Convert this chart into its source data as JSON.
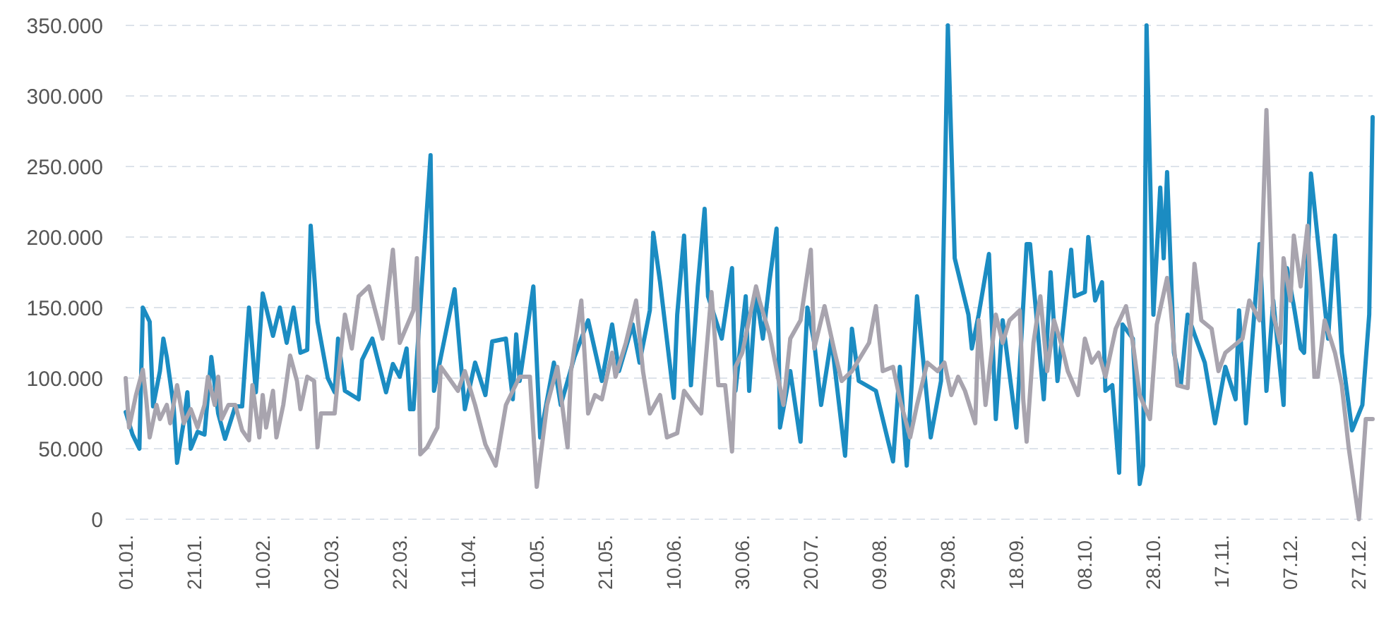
{
  "chart_data": {
    "type": "line",
    "xlim": [
      "--01-01",
      "--12-31"
    ],
    "ylim": [
      0,
      350000
    ],
    "xticks": [
      {
        "value": "--01-01",
        "label": "01.01."
      },
      {
        "value": "--01-21",
        "label": "21.01."
      },
      {
        "value": "--02-10",
        "label": "10.02."
      },
      {
        "value": "--03-02",
        "label": "02.03."
      },
      {
        "value": "--03-22",
        "label": "22.03."
      },
      {
        "value": "--04-11",
        "label": "11.04."
      },
      {
        "value": "--05-01",
        "label": "01.05."
      },
      {
        "value": "--05-21",
        "label": "21.05."
      },
      {
        "value": "--06-10",
        "label": "10.06."
      },
      {
        "value": "--06-30",
        "label": "30.06."
      },
      {
        "value": "--07-20",
        "label": "20.07."
      },
      {
        "value": "--08-09",
        "label": "09.08."
      },
      {
        "value": "--08-29",
        "label": "29.08."
      },
      {
        "value": "--09-18",
        "label": "18.09."
      },
      {
        "value": "--10-08",
        "label": "08.10."
      },
      {
        "value": "--10-28",
        "label": "28.10."
      },
      {
        "value": "--11-17",
        "label": "17.11."
      },
      {
        "value": "--12-07",
        "label": "07.12."
      },
      {
        "value": "--12-27",
        "label": "27.12."
      }
    ],
    "yticks": [
      {
        "value": 0,
        "label": "0"
      },
      {
        "value": 50000,
        "label": "50.000"
      },
      {
        "value": 100000,
        "label": "100.000"
      },
      {
        "value": 150000,
        "label": "150.000"
      },
      {
        "value": 200000,
        "label": "200.000"
      },
      {
        "value": 250000,
        "label": "250.000"
      },
      {
        "value": 300000,
        "label": "300.000"
      },
      {
        "value": 350000,
        "label": "350.000"
      }
    ],
    "grid": "y",
    "line_style": "solid",
    "marker": "none",
    "series": [
      {
        "color": "#1b8cc2",
        "x": [
          "--01-01",
          "--01-03",
          "--01-05",
          "--01-06",
          "--01-08",
          "--01-09",
          "--01-11",
          "--01-12",
          "--01-13",
          "--01-15",
          "--01-16",
          "--01-18",
          "--01-19",
          "--01-20",
          "--01-22",
          "--01-24",
          "--01-26",
          "--01-28",
          "--01-30",
          "--02-02",
          "--02-04",
          "--02-06",
          "--02-08",
          "--02-10",
          "--02-13",
          "--02-15",
          "--02-17",
          "--02-19",
          "--02-21",
          "--02-23",
          "--02-24",
          "--02-26",
          "--03-01",
          "--03-03",
          "--03-04",
          "--03-06",
          "--03-10",
          "--03-11",
          "--03-14",
          "--03-18",
          "--03-20",
          "--03-22",
          "--03-24",
          "--03-25",
          "--03-26",
          "--03-31",
          "--04-01",
          "--04-03",
          "--04-07",
          "--04-10",
          "--04-13",
          "--04-16",
          "--04-18",
          "--04-22",
          "--04-24",
          "--04-25",
          "--04-26",
          "--04-28",
          "--04-30",
          "--05-02",
          "--05-06",
          "--05-08",
          "--05-12",
          "--05-16",
          "--05-20",
          "--05-23",
          "--05-25",
          "--05-29",
          "--05-31",
          "--06-03",
          "--06-04",
          "--06-06",
          "--06-10",
          "--06-11",
          "--06-13",
          "--06-15",
          "--06-17",
          "--06-19",
          "--06-20",
          "--06-24",
          "--06-27",
          "--06-28",
          "--07-01",
          "--07-02",
          "--07-04",
          "--07-06",
          "--07-08",
          "--07-10",
          "--07-11",
          "--07-14",
          "--07-17",
          "--07-19",
          "--07-21",
          "--07-23",
          "--07-26",
          "--07-30",
          "--08-01",
          "--08-03",
          "--08-08",
          "--08-13",
          "--08-15",
          "--08-17",
          "--08-20",
          "--08-24",
          "--08-27",
          "--08-29",
          "--08-31",
          "--09-04",
          "--09-05",
          "--09-07",
          "--09-10",
          "--09-12",
          "--09-14",
          "--09-18",
          "--09-21",
          "--09-22",
          "--09-26",
          "--09-28",
          "--09-30",
          "--10-04",
          "--10-05",
          "--10-08",
          "--10-09",
          "--10-11",
          "--10-13",
          "--10-14",
          "--10-16",
          "--10-18",
          "--10-19",
          "--10-22",
          "--10-24",
          "--10-25",
          "--10-26",
          "--10-28",
          "--10-30",
          "--10-31",
          "--11-01",
          "--11-03",
          "--11-05",
          "--11-07",
          "--11-09",
          "--11-12",
          "--11-15",
          "--11-18",
          "--11-21",
          "--11-22",
          "--11-24",
          "--11-28",
          "--11-30",
          "--12-02",
          "--12-05",
          "--12-06",
          "--12-08",
          "--12-10",
          "--12-11",
          "--12-13",
          "--12-15",
          "--12-18",
          "--12-20",
          "--12-22",
          "--12-25",
          "--12-28",
          "--12-30",
          "--12-31"
        ],
        "values": [
          76000,
          60000,
          50000,
          150000,
          140000,
          80000,
          105000,
          128000,
          115000,
          80000,
          40000,
          70000,
          90000,
          50000,
          62000,
          60000,
          115000,
          75000,
          57000,
          80000,
          80000,
          150000,
          90000,
          160000,
          130000,
          150000,
          125000,
          150000,
          118000,
          120000,
          208000,
          140000,
          100000,
          90000,
          128000,
          91000,
          85000,
          113000,
          128000,
          90000,
          110000,
          101000,
          121000,
          78000,
          78000,
          258000,
          91000,
          115000,
          163000,
          78000,
          111000,
          88000,
          126000,
          128000,
          85000,
          131000,
          98000,
          131000,
          165000,
          58000,
          111000,
          81000,
          115000,
          141000,
          98000,
          138000,
          105000,
          138000,
          111000,
          148000,
          203000,
          168000,
          86000,
          145000,
          201000,
          95000,
          165000,
          220000,
          158000,
          128000,
          178000,
          91000,
          158000,
          91000,
          161000,
          128000,
          170000,
          206000,
          65000,
          105000,
          55000,
          150000,
          125000,
          81000,
          128000,
          45000,
          135000,
          98000,
          91000,
          41000,
          108000,
          38000,
          158000,
          58000,
          98000,
          350000,
          185000,
          145000,
          121000,
          145000,
          188000,
          71000,
          141000,
          65000,
          195000,
          195000,
          85000,
          175000,
          98000,
          191000,
          158000,
          161000,
          200000,
          155000,
          168000,
          91000,
          95000,
          33000,
          138000,
          128000,
          25000,
          38000,
          350000,
          145000,
          235000,
          185000,
          246000,
          118000,
          95000,
          145000,
          131000,
          111000,
          68000,
          108000,
          85000,
          148000,
          68000,
          195000,
          91000,
          155000,
          81000,
          178000,
          151000,
          121000,
          118000,
          245000,
          198000,
          128000,
          201000,
          118000,
          63000,
          81000,
          145000,
          285000
        ]
      },
      {
        "color": "#a8a4ae",
        "x": [
          "--01-01",
          "--01-02",
          "--01-04",
          "--01-06",
          "--01-07",
          "--01-08",
          "--01-10",
          "--01-11",
          "--01-13",
          "--01-14",
          "--01-16",
          "--01-18",
          "--01-20",
          "--01-22",
          "--01-24",
          "--01-25",
          "--01-27",
          "--01-28",
          "--01-29",
          "--01-31",
          "--02-02",
          "--02-04",
          "--02-06",
          "--02-07",
          "--02-09",
          "--02-10",
          "--02-11",
          "--02-13",
          "--02-14",
          "--02-16",
          "--02-18",
          "--02-20",
          "--02-21",
          "--02-23",
          "--02-25",
          "--02-26",
          "--02-27",
          "--03-03",
          "--03-04",
          "--03-06",
          "--03-08",
          "--03-10",
          "--03-13",
          "--03-17",
          "--03-20",
          "--03-22",
          "--03-26",
          "--03-27",
          "--03-28",
          "--03-30",
          "--04-02",
          "--04-03",
          "--04-08",
          "--04-10",
          "--04-13",
          "--04-16",
          "--04-19",
          "--04-22",
          "--04-26",
          "--04-29",
          "--05-01",
          "--05-04",
          "--05-07",
          "--05-10",
          "--05-11",
          "--05-14",
          "--05-16",
          "--05-18",
          "--05-20",
          "--05-23",
          "--05-24",
          "--05-27",
          "--05-30",
          "--06-01",
          "--06-03",
          "--06-06",
          "--06-08",
          "--06-11",
          "--06-13",
          "--06-16",
          "--06-18",
          "--06-21",
          "--06-23",
          "--06-25",
          "--06-27",
          "--06-28",
          "--06-30",
          "--07-04",
          "--07-05",
          "--07-08",
          "--07-12",
          "--07-14",
          "--07-17",
          "--07-20",
          "--07-21",
          "--07-24",
          "--07-27",
          "--07-29",
          "--08-01",
          "--08-06",
          "--08-08",
          "--08-10",
          "--08-13",
          "--08-15",
          "--08-18",
          "--08-20",
          "--08-23",
          "--08-26",
          "--08-28",
          "--08-30",
          "--09-01",
          "--09-03",
          "--09-06",
          "--09-07",
          "--09-09",
          "--09-12",
          "--09-14",
          "--09-16",
          "--09-19",
          "--09-20",
          "--09-21",
          "--09-23",
          "--09-25",
          "--09-27",
          "--09-29",
          "--10-01",
          "--10-03",
          "--10-06",
          "--10-08",
          "--10-10",
          "--10-12",
          "--10-14",
          "--10-17",
          "--10-20",
          "--10-22",
          "--10-24",
          "--10-27",
          "--10-29",
          "--11-01",
          "--11-02",
          "--11-04",
          "--11-07",
          "--11-09",
          "--11-11",
          "--11-14",
          "--11-16",
          "--11-18",
          "--11-23",
          "--11-25",
          "--11-28",
          "--11-30",
          "--12-02",
          "--12-04",
          "--12-05",
          "--12-07",
          "--12-08",
          "--12-10",
          "--12-12",
          "--12-14",
          "--12-15",
          "--12-17",
          "--12-20",
          "--12-22",
          "--12-24",
          "--12-27",
          "--12-29",
          "--12-31"
        ],
        "values": [
          100000,
          65000,
          88000,
          106000,
          85000,
          58000,
          81000,
          71000,
          81000,
          68000,
          95000,
          68000,
          78000,
          65000,
          81000,
          101000,
          81000,
          101000,
          71000,
          81000,
          81000,
          63000,
          56000,
          95000,
          58000,
          88000,
          65000,
          91000,
          58000,
          81000,
          116000,
          98000,
          78000,
          101000,
          98000,
          51000,
          75000,
          75000,
          101000,
          145000,
          121000,
          158000,
          165000,
          128000,
          191000,
          125000,
          148000,
          185000,
          46000,
          51000,
          65000,
          108000,
          91000,
          105000,
          81000,
          53000,
          38000,
          81000,
          101000,
          101000,
          23000,
          81000,
          108000,
          51000,
          105000,
          155000,
          75000,
          88000,
          85000,
          118000,
          101000,
          125000,
          155000,
          105000,
          75000,
          88000,
          58000,
          61000,
          91000,
          81000,
          75000,
          161000,
          95000,
          95000,
          48000,
          108000,
          118000,
          165000,
          155000,
          131000,
          81000,
          128000,
          141000,
          191000,
          121000,
          151000,
          118000,
          98000,
          105000,
          125000,
          151000,
          105000,
          108000,
          85000,
          58000,
          81000,
          111000,
          105000,
          111000,
          88000,
          101000,
          91000,
          68000,
          141000,
          81000,
          145000,
          125000,
          141000,
          148000,
          85000,
          55000,
          125000,
          158000,
          105000,
          141000,
          125000,
          105000,
          88000,
          128000,
          111000,
          118000,
          101000,
          135000,
          151000,
          125000,
          88000,
          71000,
          138000,
          171000,
          151000,
          95000,
          93000,
          181000,
          141000,
          135000,
          105000,
          118000,
          128000,
          155000,
          141000,
          290000,
          145000,
          125000,
          185000,
          155000,
          201000,
          165000,
          208000,
          101000,
          101000,
          141000,
          118000,
          95000,
          51000,
          0,
          71000,
          71000
        ]
      }
    ]
  }
}
